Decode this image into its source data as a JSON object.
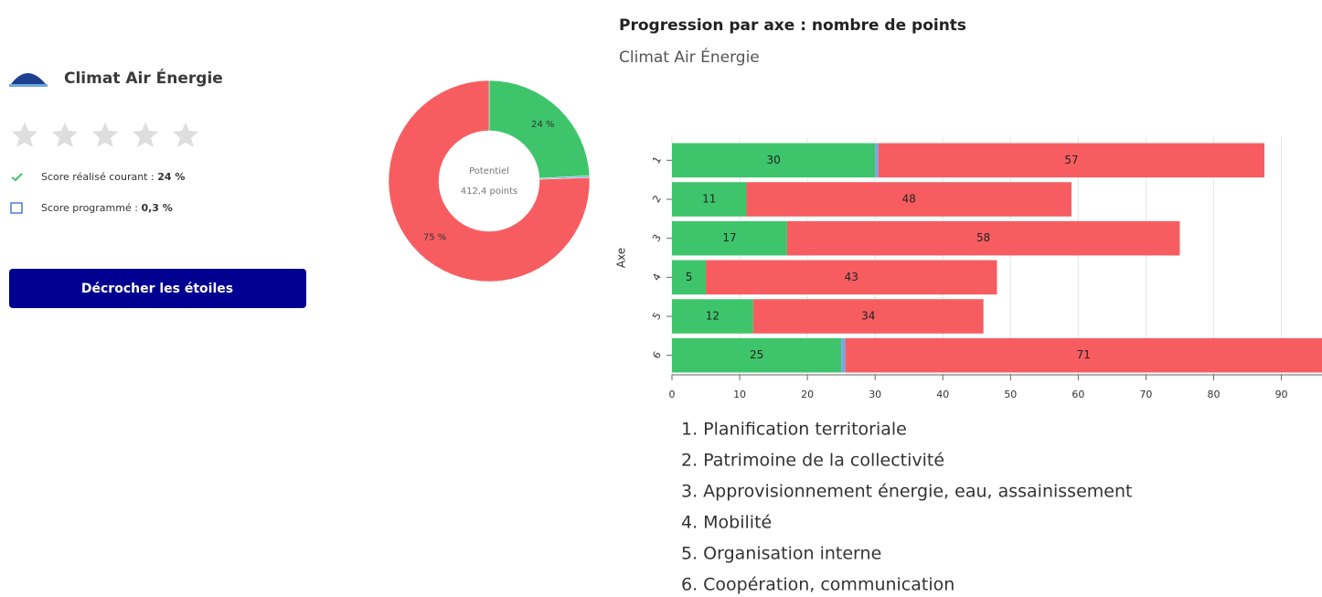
{
  "sidebar": {
    "title": "Climat Air Énergie",
    "score_realise_label": "Score réalisé courant :",
    "score_realise": "24 %",
    "score_programme_label": "Score programmé :",
    "score_programme": "0,3 %",
    "button": "Décrocher les étoiles"
  },
  "chart_data": [
    {
      "type": "pie",
      "donut": true,
      "values": [
        24,
        0.3,
        75
      ],
      "colors": [
        "#3ec56b",
        "#7aa6e0",
        "#f75d60"
      ],
      "value_labels": [
        "24 %",
        null,
        "75 %"
      ],
      "center_text": [
        "Potentiel",
        "412,4 points"
      ]
    },
    {
      "type": "bar",
      "orientation": "horizontal",
      "stacked": true,
      "title": "Progression par axe : nombre de points",
      "subtitle": "Climat Air Énergie",
      "ylabel": "Axe",
      "categories": [
        "1",
        "2",
        "3",
        "4",
        "5",
        "6"
      ],
      "series": [
        {
          "color": "#3ec56b",
          "values": [
            30,
            11,
            17,
            5,
            12,
            25
          ],
          "data_labels": true
        },
        {
          "color": "#7aa6e0",
          "values": [
            0.5,
            0,
            0,
            0,
            0,
            0.6
          ],
          "data_labels": false
        },
        {
          "color": "#f75d60",
          "values": [
            57,
            48,
            58,
            43,
            34,
            71
          ],
          "data_labels": true
        }
      ],
      "xlim": [
        0,
        96
      ],
      "xticks": [
        0,
        10,
        20,
        30,
        40,
        50,
        60,
        70,
        80,
        90
      ],
      "grid": true,
      "category_legend": [
        "1. Planification territoriale",
        "2. Patrimoine de la collectivité",
        "3. Approvisionnement énergie, eau, assainissement",
        "4. Mobilité",
        "5. Organisation interne",
        "6. Coopération, communication"
      ]
    }
  ]
}
